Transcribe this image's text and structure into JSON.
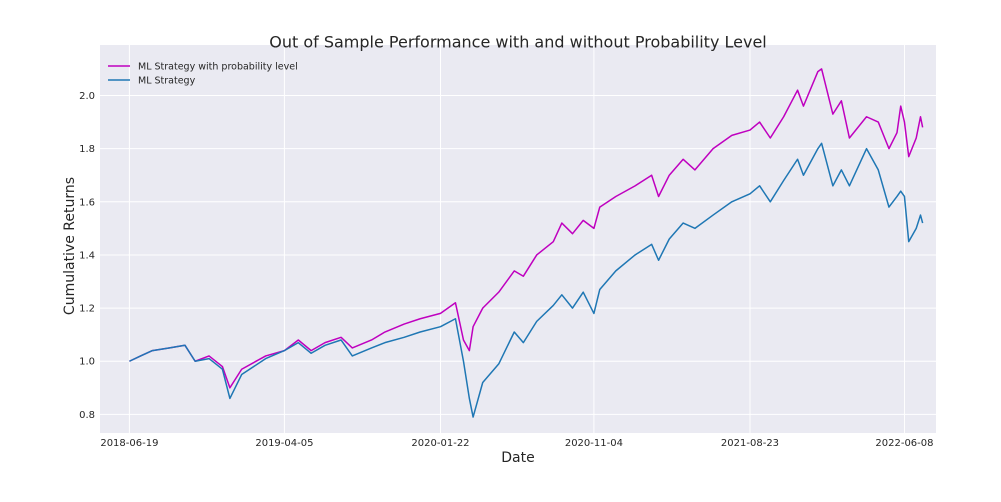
{
  "chart_data": {
    "type": "line",
    "title": "Out of Sample Performance with and without Probability Level",
    "xlabel": "Date",
    "ylabel": "Cumulative Returns",
    "x_ticks": [
      "2018-06-19",
      "2019-04-05",
      "2020-01-22",
      "2020-11-04",
      "2021-08-23",
      "2022-06-08"
    ],
    "y_ticks": [
      "0.8",
      "1.0",
      "1.2",
      "1.4",
      "1.6",
      "1.8",
      "2.0"
    ],
    "xlim": [
      "2018-04-25",
      "2022-08-06"
    ],
    "ylim": [
      0.73,
      2.19
    ],
    "grid": true,
    "legend_position": "top-left",
    "series": [
      {
        "name": "ML Strategy with probability level",
        "color": "#bf00bf",
        "points": [
          [
            "2018-06-19",
            1.0
          ],
          [
            "2018-07-10",
            1.02
          ],
          [
            "2018-08-01",
            1.04
          ],
          [
            "2018-09-01",
            1.05
          ],
          [
            "2018-10-01",
            1.06
          ],
          [
            "2018-10-20",
            1.0
          ],
          [
            "2018-11-15",
            1.02
          ],
          [
            "2018-12-10",
            0.98
          ],
          [
            "2018-12-24",
            0.9
          ],
          [
            "2019-01-15",
            0.97
          ],
          [
            "2019-03-01",
            1.02
          ],
          [
            "2019-04-05",
            1.04
          ],
          [
            "2019-05-01",
            1.08
          ],
          [
            "2019-05-25",
            1.04
          ],
          [
            "2019-06-20",
            1.07
          ],
          [
            "2019-07-20",
            1.09
          ],
          [
            "2019-08-10",
            1.05
          ],
          [
            "2019-09-15",
            1.08
          ],
          [
            "2019-10-10",
            1.11
          ],
          [
            "2019-11-15",
            1.14
          ],
          [
            "2019-12-15",
            1.16
          ],
          [
            "2020-01-22",
            1.18
          ],
          [
            "2020-02-19",
            1.22
          ],
          [
            "2020-03-05",
            1.08
          ],
          [
            "2020-03-16",
            1.04
          ],
          [
            "2020-03-23",
            1.13
          ],
          [
            "2020-04-10",
            1.2
          ],
          [
            "2020-05-10",
            1.26
          ],
          [
            "2020-06-08",
            1.34
          ],
          [
            "2020-06-25",
            1.32
          ],
          [
            "2020-07-20",
            1.4
          ],
          [
            "2020-08-20",
            1.45
          ],
          [
            "2020-09-05",
            1.52
          ],
          [
            "2020-09-25",
            1.48
          ],
          [
            "2020-10-15",
            1.53
          ],
          [
            "2020-11-04",
            1.5
          ],
          [
            "2020-11-15",
            1.58
          ],
          [
            "2020-12-15",
            1.62
          ],
          [
            "2021-01-20",
            1.66
          ],
          [
            "2021-02-20",
            1.7
          ],
          [
            "2021-03-05",
            1.62
          ],
          [
            "2021-03-25",
            1.7
          ],
          [
            "2021-04-20",
            1.76
          ],
          [
            "2021-05-12",
            1.72
          ],
          [
            "2021-06-15",
            1.8
          ],
          [
            "2021-07-20",
            1.85
          ],
          [
            "2021-08-23",
            1.87
          ],
          [
            "2021-09-10",
            1.9
          ],
          [
            "2021-09-30",
            1.84
          ],
          [
            "2021-10-25",
            1.92
          ],
          [
            "2021-11-20",
            2.02
          ],
          [
            "2021-12-01",
            1.96
          ],
          [
            "2021-12-28",
            2.09
          ],
          [
            "2022-01-04",
            2.1
          ],
          [
            "2022-01-25",
            1.93
          ],
          [
            "2022-02-10",
            1.98
          ],
          [
            "2022-02-25",
            1.84
          ],
          [
            "2022-03-29",
            1.92
          ],
          [
            "2022-04-20",
            1.9
          ],
          [
            "2022-05-10",
            1.8
          ],
          [
            "2022-05-25",
            1.86
          ],
          [
            "2022-06-01",
            1.96
          ],
          [
            "2022-06-08",
            1.9
          ],
          [
            "2022-06-16",
            1.77
          ],
          [
            "2022-06-30",
            1.84
          ],
          [
            "2022-07-08",
            1.92
          ],
          [
            "2022-07-12",
            1.88
          ]
        ]
      },
      {
        "name": "ML Strategy",
        "color": "#1f77b4",
        "points": [
          [
            "2018-06-19",
            1.0
          ],
          [
            "2018-07-10",
            1.02
          ],
          [
            "2018-08-01",
            1.04
          ],
          [
            "2018-09-01",
            1.05
          ],
          [
            "2018-10-01",
            1.06
          ],
          [
            "2018-10-20",
            1.0
          ],
          [
            "2018-11-15",
            1.01
          ],
          [
            "2018-12-10",
            0.97
          ],
          [
            "2018-12-24",
            0.86
          ],
          [
            "2019-01-15",
            0.95
          ],
          [
            "2019-03-01",
            1.01
          ],
          [
            "2019-04-05",
            1.04
          ],
          [
            "2019-05-01",
            1.07
          ],
          [
            "2019-05-25",
            1.03
          ],
          [
            "2019-06-20",
            1.06
          ],
          [
            "2019-07-20",
            1.08
          ],
          [
            "2019-08-10",
            1.02
          ],
          [
            "2019-09-15",
            1.05
          ],
          [
            "2019-10-10",
            1.07
          ],
          [
            "2019-11-15",
            1.09
          ],
          [
            "2019-12-15",
            1.11
          ],
          [
            "2020-01-22",
            1.13
          ],
          [
            "2020-02-19",
            1.16
          ],
          [
            "2020-03-05",
            1.0
          ],
          [
            "2020-03-16",
            0.86
          ],
          [
            "2020-03-23",
            0.79
          ],
          [
            "2020-04-10",
            0.92
          ],
          [
            "2020-05-10",
            0.99
          ],
          [
            "2020-06-08",
            1.11
          ],
          [
            "2020-06-25",
            1.07
          ],
          [
            "2020-07-20",
            1.15
          ],
          [
            "2020-08-20",
            1.21
          ],
          [
            "2020-09-05",
            1.25
          ],
          [
            "2020-09-25",
            1.2
          ],
          [
            "2020-10-15",
            1.26
          ],
          [
            "2020-11-04",
            1.18
          ],
          [
            "2020-11-15",
            1.27
          ],
          [
            "2020-12-15",
            1.34
          ],
          [
            "2021-01-20",
            1.4
          ],
          [
            "2021-02-20",
            1.44
          ],
          [
            "2021-03-05",
            1.38
          ],
          [
            "2021-03-25",
            1.46
          ],
          [
            "2021-04-20",
            1.52
          ],
          [
            "2021-05-12",
            1.5
          ],
          [
            "2021-06-15",
            1.55
          ],
          [
            "2021-07-20",
            1.6
          ],
          [
            "2021-08-23",
            1.63
          ],
          [
            "2021-09-10",
            1.66
          ],
          [
            "2021-09-30",
            1.6
          ],
          [
            "2021-10-25",
            1.68
          ],
          [
            "2021-11-20",
            1.76
          ],
          [
            "2021-12-01",
            1.7
          ],
          [
            "2021-12-28",
            1.8
          ],
          [
            "2022-01-04",
            1.82
          ],
          [
            "2022-01-25",
            1.66
          ],
          [
            "2022-02-10",
            1.72
          ],
          [
            "2022-02-25",
            1.66
          ],
          [
            "2022-03-29",
            1.8
          ],
          [
            "2022-04-20",
            1.72
          ],
          [
            "2022-05-10",
            1.58
          ],
          [
            "2022-05-25",
            1.62
          ],
          [
            "2022-06-01",
            1.64
          ],
          [
            "2022-06-08",
            1.62
          ],
          [
            "2022-06-16",
            1.45
          ],
          [
            "2022-06-30",
            1.5
          ],
          [
            "2022-07-08",
            1.55
          ],
          [
            "2022-07-12",
            1.52
          ]
        ]
      }
    ]
  }
}
